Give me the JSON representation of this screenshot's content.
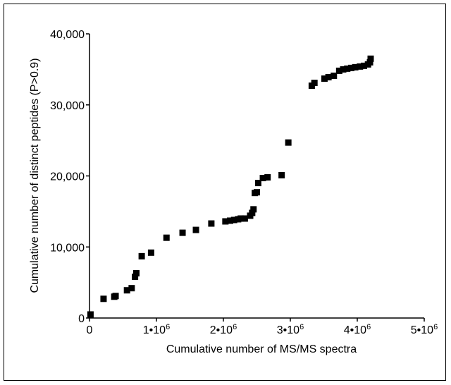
{
  "chart_data": {
    "type": "scatter",
    "xlabel": "Cumulative number of MS/MS spectra",
    "ylabel": "Cumulative number of distinct peptides (P>0.9)",
    "xlim": [
      0,
      5000000
    ],
    "ylim": [
      0,
      40000
    ],
    "grid": false,
    "marker": "square",
    "marker_color": "#000000",
    "x_ticks": [
      {
        "value": 0,
        "label": "0",
        "exp": ""
      },
      {
        "value": 1000000,
        "label": "1•10",
        "exp": "6"
      },
      {
        "value": 2000000,
        "label": "2•10",
        "exp": "6"
      },
      {
        "value": 3000000,
        "label": "3•10",
        "exp": "6"
      },
      {
        "value": 4000000,
        "label": "4•10",
        "exp": "6"
      },
      {
        "value": 5000000,
        "label": "5•10",
        "exp": "6"
      }
    ],
    "y_ticks": [
      {
        "value": 0,
        "label": "0"
      },
      {
        "value": 10000,
        "label": "10,000"
      },
      {
        "value": 20000,
        "label": "20,000"
      },
      {
        "value": 30000,
        "label": "30,000"
      },
      {
        "value": 40000,
        "label": "40,000"
      }
    ],
    "series": [
      {
        "points": [
          [
            15000,
            500
          ],
          [
            210000,
            2700
          ],
          [
            370000,
            3000
          ],
          [
            390000,
            3100
          ],
          [
            560000,
            3900
          ],
          [
            630000,
            4200
          ],
          [
            680000,
            5800
          ],
          [
            700000,
            6300
          ],
          [
            780000,
            8700
          ],
          [
            920000,
            9200
          ],
          [
            1150000,
            11300
          ],
          [
            1390000,
            12000
          ],
          [
            1590000,
            12400
          ],
          [
            1820000,
            13300
          ],
          [
            2030000,
            13600
          ],
          [
            2100000,
            13700
          ],
          [
            2160000,
            13800
          ],
          [
            2220000,
            13900
          ],
          [
            2260000,
            14000
          ],
          [
            2320000,
            14000
          ],
          [
            2400000,
            14400
          ],
          [
            2430000,
            14800
          ],
          [
            2450000,
            15300
          ],
          [
            2470000,
            17600
          ],
          [
            2500000,
            17700
          ],
          [
            2520000,
            19000
          ],
          [
            2590000,
            19700
          ],
          [
            2660000,
            19800
          ],
          [
            2870000,
            20100
          ],
          [
            2970000,
            24700
          ],
          [
            3320000,
            32700
          ],
          [
            3360000,
            33100
          ],
          [
            3510000,
            33700
          ],
          [
            3570000,
            33900
          ],
          [
            3650000,
            34100
          ],
          [
            3730000,
            34800
          ],
          [
            3790000,
            35000
          ],
          [
            3850000,
            35100
          ],
          [
            3910000,
            35200
          ],
          [
            3970000,
            35300
          ],
          [
            4040000,
            35400
          ],
          [
            4100000,
            35500
          ],
          [
            4160000,
            35700
          ],
          [
            4190000,
            36000
          ],
          [
            4200000,
            36500
          ]
        ]
      }
    ]
  }
}
